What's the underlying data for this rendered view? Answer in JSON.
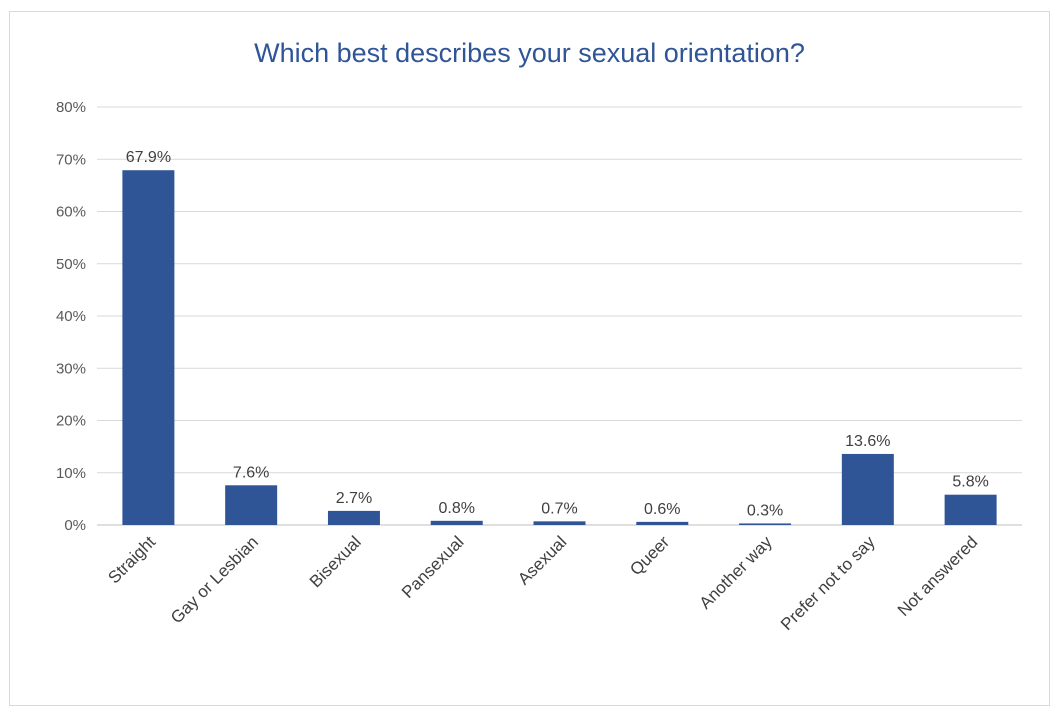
{
  "chart_data": {
    "type": "bar",
    "title": "Which best describes your sexual orientation?",
    "categories": [
      "Straight",
      "Gay or Lesbian",
      "Bisexual",
      "Pansexual",
      "Asexual",
      "Queer",
      "Another way",
      "Prefer not to say",
      "Not answered"
    ],
    "values": [
      67.9,
      7.6,
      2.7,
      0.8,
      0.7,
      0.6,
      0.3,
      13.6,
      5.8
    ],
    "data_labels": [
      "67.9%",
      "7.6%",
      "2.7%",
      "0.8%",
      "0.7%",
      "0.6%",
      "0.3%",
      "13.6%",
      "5.8%"
    ],
    "y_ticks": [
      "0%",
      "10%",
      "20%",
      "30%",
      "40%",
      "50%",
      "60%",
      "70%",
      "80%"
    ],
    "ylim": [
      0,
      80
    ],
    "xlabel": "",
    "ylabel": "",
    "grid": true,
    "legend": false,
    "bar_color": "#2f5597",
    "title_color": "#2f5597"
  }
}
